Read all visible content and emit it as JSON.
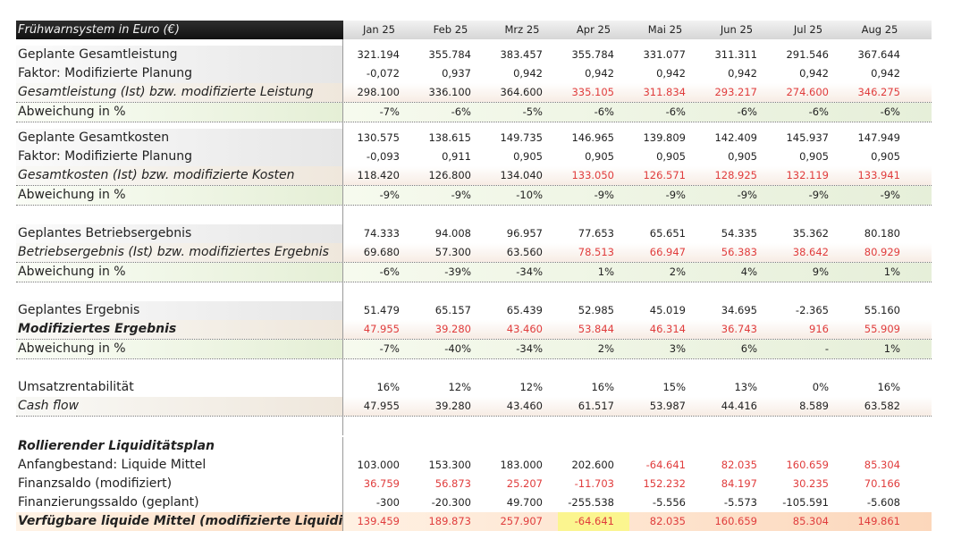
{
  "header": {
    "title": "Frühwarnsystem in Euro (€)",
    "months": [
      "Jan 25",
      "Feb 25",
      "Mrz 25",
      "Apr 25",
      "Mai 25",
      "Jun 25",
      "Jul 25",
      "Aug 25"
    ]
  },
  "rows": {
    "r1": {
      "label": "Geplante Gesamtleistung",
      "values": [
        "321.194",
        "355.784",
        "383.457",
        "355.784",
        "331.077",
        "311.311",
        "291.546",
        "367.644"
      ]
    },
    "r2": {
      "label": "Faktor: Modifizierte Planung",
      "values": [
        "-0,072",
        "0,937",
        "0,942",
        "0,942",
        "0,942",
        "0,942",
        "0,942",
        "0,942"
      ]
    },
    "r3": {
      "label": "Gesamtleistung (Ist) bzw. modifizierte Leistung",
      "values": [
        "298.100",
        "336.100",
        "364.600",
        "335.105",
        "311.834",
        "293.217",
        "274.600",
        "346.275"
      ]
    },
    "r4": {
      "label": "Abweichung in %",
      "values": [
        "-7%",
        "-6%",
        "-5%",
        "-6%",
        "-6%",
        "-6%",
        "-6%",
        "-6%"
      ]
    },
    "r5": {
      "label": "Geplante Gesamtkosten",
      "values": [
        "130.575",
        "138.615",
        "149.735",
        "146.965",
        "139.809",
        "142.409",
        "145.937",
        "147.949"
      ]
    },
    "r6": {
      "label": "Faktor: Modifizierte Planung",
      "values": [
        "-0,093",
        "0,911",
        "0,905",
        "0,905",
        "0,905",
        "0,905",
        "0,905",
        "0,905"
      ]
    },
    "r7": {
      "label": "Gesamtkosten (Ist) bzw. modifizierte Kosten",
      "values": [
        "118.420",
        "126.800",
        "134.040",
        "133.050",
        "126.571",
        "128.925",
        "132.119",
        "133.941"
      ]
    },
    "r8": {
      "label": "Abweichung in %",
      "values": [
        "-9%",
        "-9%",
        "-10%",
        "-9%",
        "-9%",
        "-9%",
        "-9%",
        "-9%"
      ]
    },
    "r9": {
      "label": "Geplantes Betriebsergebnis",
      "values": [
        "74.333",
        "94.008",
        "96.957",
        "77.653",
        "65.651",
        "54.335",
        "35.362",
        "80.180"
      ]
    },
    "r10": {
      "label": "Betriebsergebnis (Ist) bzw. modifiziertes Ergebnis",
      "values": [
        "69.680",
        "57.300",
        "63.560",
        "78.513",
        "66.947",
        "56.383",
        "38.642",
        "80.929"
      ]
    },
    "r11": {
      "label": "Abweichung in %",
      "values": [
        "-6%",
        "-39%",
        "-34%",
        "1%",
        "2%",
        "4%",
        "9%",
        "1%"
      ]
    },
    "r12": {
      "label": "Geplantes Ergebnis",
      "values": [
        "51.479",
        "65.157",
        "65.439",
        "52.985",
        "45.019",
        "34.695",
        "-2.365",
        "55.160"
      ]
    },
    "r13": {
      "label": "Modifiziertes Ergebnis",
      "values": [
        "47.955",
        "39.280",
        "43.460",
        "53.844",
        "46.314",
        "36.743",
        "916",
        "55.909"
      ]
    },
    "r14": {
      "label": "Abweichung in %",
      "values": [
        "-7%",
        "-40%",
        "-34%",
        "2%",
        "3%",
        "6%",
        "-",
        "1%"
      ]
    },
    "r15": {
      "label": "Umsatzrentabilität",
      "values": [
        "16%",
        "12%",
        "12%",
        "16%",
        "15%",
        "13%",
        "0%",
        "16%"
      ]
    },
    "r16": {
      "label": "Cash flow",
      "values": [
        "47.955",
        "39.280",
        "43.460",
        "61.517",
        "53.987",
        "44.416",
        "8.589",
        "63.582"
      ]
    },
    "r17": {
      "label": "Rollierender Liquiditätsplan",
      "values": []
    },
    "r18": {
      "label": "Anfangbestand: Liquide Mittel",
      "values": [
        "103.000",
        "153.300",
        "183.000",
        "202.600",
        "-64.641",
        "82.035",
        "160.659",
        "85.304"
      ]
    },
    "r19": {
      "label": "Finanzsaldo (modifiziert)",
      "values": [
        "36.759",
        "56.873",
        "25.207",
        "-11.703",
        "152.232",
        "84.197",
        "30.235",
        "70.166"
      ]
    },
    "r20": {
      "label": "Finanzierungssaldo (geplant)",
      "values": [
        "-300",
        "-20.300",
        "49.700",
        "-255.538",
        "-5.556",
        "-5.573",
        "-105.591",
        "-5.608"
      ]
    },
    "r21": {
      "label": "Verfügbare liquide Mittel (modifizierte Liquidität)",
      "values": [
        "139.459",
        "189.873",
        "257.907",
        "-64.641",
        "82.035",
        "160.659",
        "85.304",
        "149.861"
      ]
    }
  }
}
